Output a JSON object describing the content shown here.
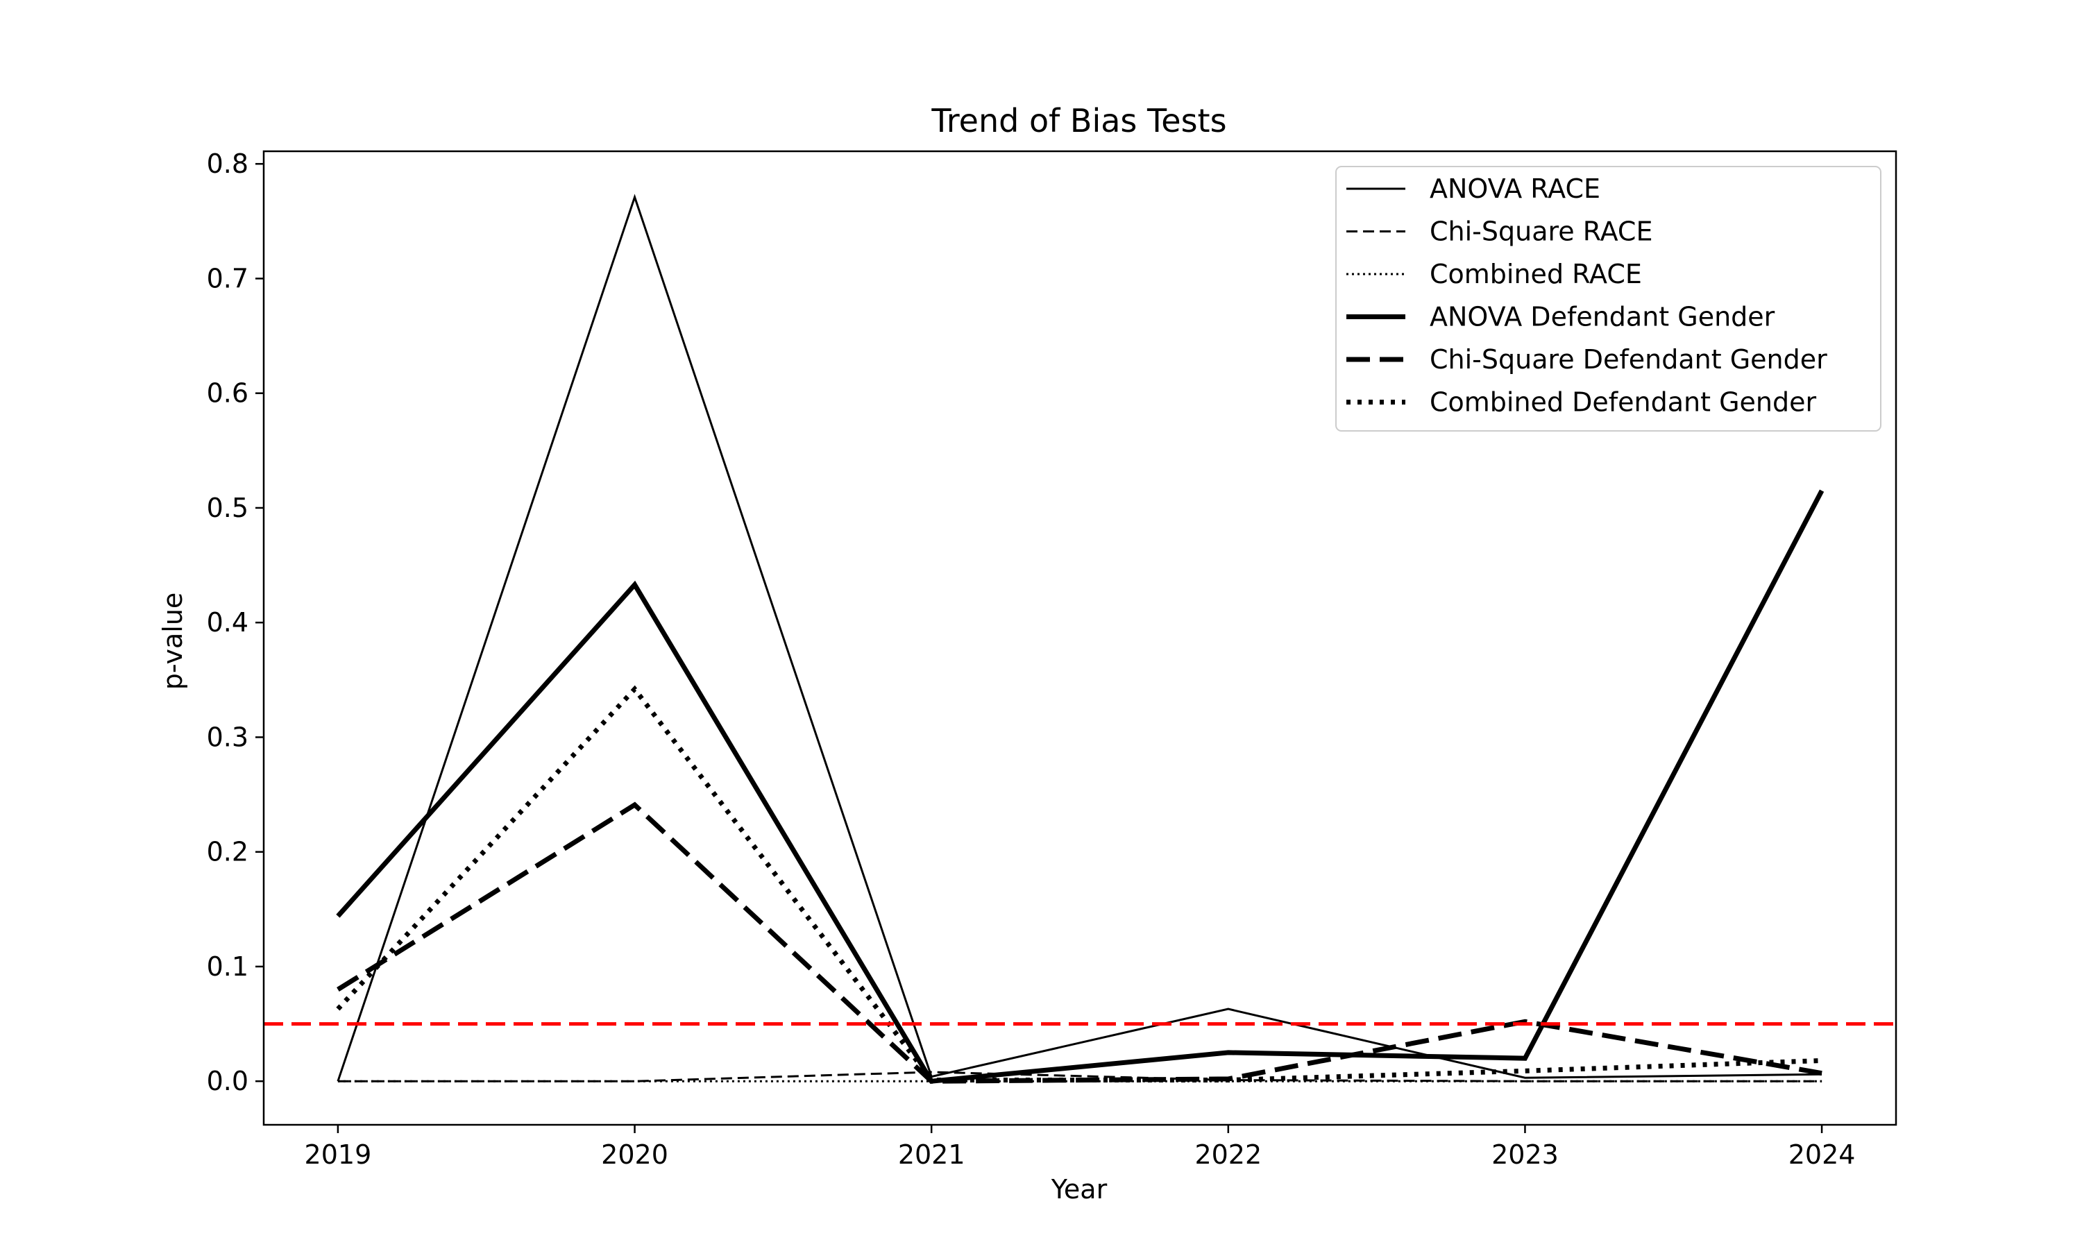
{
  "chart_data": {
    "type": "line",
    "title": "Trend of Bias Tests",
    "xlabel": "Year",
    "ylabel": "p-value",
    "x": [
      2019,
      2020,
      2021,
      2022,
      2023,
      2024
    ],
    "xlim": [
      2018.75,
      2024.25
    ],
    "ylim": [
      -0.038,
      0.811
    ],
    "yticks": [
      0.0,
      0.1,
      0.2,
      0.3,
      0.4,
      0.5,
      0.6,
      0.7,
      0.8
    ],
    "ytick_labels": [
      "0.0",
      "0.1",
      "0.2",
      "0.3",
      "0.4",
      "0.5",
      "0.6",
      "0.7",
      "0.8"
    ],
    "xtick_labels": [
      "2019",
      "2020",
      "2021",
      "2022",
      "2023",
      "2024"
    ],
    "grid": false,
    "legend_position": "top-right",
    "series": [
      {
        "name": "ANOVA RACE",
        "values": [
          0.0,
          0.771,
          0.004,
          0.063,
          0.003,
          0.006
        ],
        "color": "#000000",
        "style": "solid",
        "weight": "thin"
      },
      {
        "name": "Chi-Square RACE",
        "values": [
          0.0,
          0.0,
          0.008,
          0.001,
          0.0,
          0.0
        ],
        "color": "#000000",
        "style": "dashed",
        "weight": "thin"
      },
      {
        "name": "Combined RACE",
        "values": [
          0.0,
          0.0,
          0.0,
          0.0,
          0.0,
          0.0
        ],
        "color": "#000000",
        "style": "dotted",
        "weight": "thin"
      },
      {
        "name": "ANOVA Defendant Gender",
        "values": [
          0.144,
          0.433,
          0.0,
          0.025,
          0.02,
          0.515
        ],
        "color": "#000000",
        "style": "solid",
        "weight": "thick"
      },
      {
        "name": "Chi-Square Defendant Gender",
        "values": [
          0.08,
          0.241,
          0.0,
          0.002,
          0.052,
          0.007
        ],
        "color": "#000000",
        "style": "dashed",
        "weight": "thick"
      },
      {
        "name": "Combined Defendant Gender",
        "values": [
          0.063,
          0.342,
          0.001,
          0.001,
          0.009,
          0.018
        ],
        "color": "#000000",
        "style": "dotted",
        "weight": "thick"
      }
    ],
    "reference_line": {
      "y": 0.05,
      "color": "#ff0000",
      "style": "dashed"
    }
  }
}
